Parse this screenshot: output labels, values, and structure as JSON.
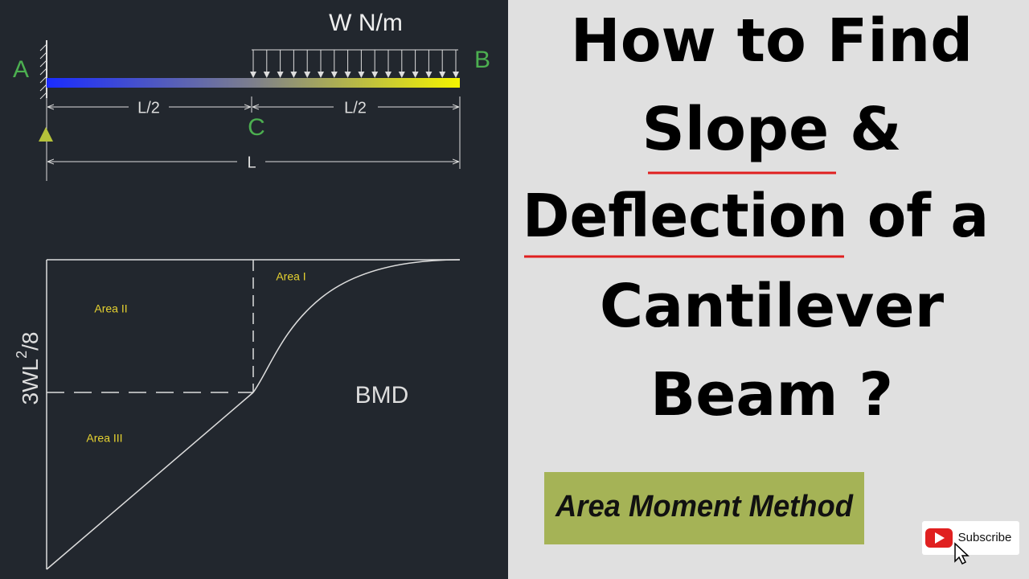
{
  "diagram": {
    "load": "W N/m",
    "point_a": "A",
    "point_b": "B",
    "point_c": "C",
    "half_left": "L/2",
    "half_right": "L/2",
    "span": "L",
    "area_1": "Area I",
    "area_2": "Area II",
    "area_3": "Area III",
    "moment_label": {
      "base": "3WL",
      "sup": "2",
      "tail": "/8"
    },
    "bmd": "BMD"
  },
  "title": {
    "lines": [
      "How to Find",
      "Slope &",
      "Deflection of a",
      "Cantilever",
      "Beam ?"
    ]
  },
  "badge": "Area Moment Method",
  "subscribe": "Subscribe"
}
